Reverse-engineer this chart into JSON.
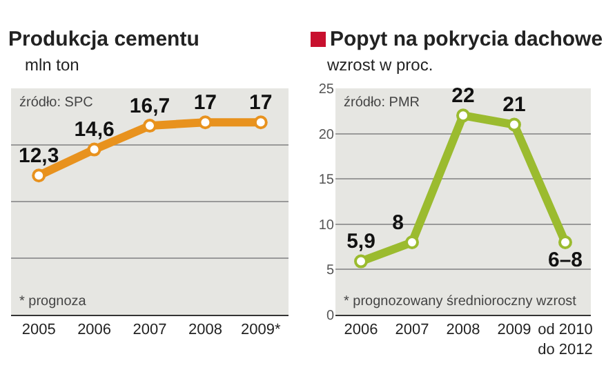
{
  "chart_data": [
    {
      "type": "line",
      "title": "Produkcja cementu",
      "subtitle": "mln ton",
      "categories": [
        "2005",
        "2006",
        "2007",
        "2008",
        "2009*"
      ],
      "series": [
        {
          "color": "#e8921e",
          "values": [
            12.3,
            14.6,
            16.7,
            17,
            17
          ],
          "value_labels": [
            "12,3",
            "14,6",
            "16,7",
            "17",
            "17"
          ]
        }
      ],
      "ylim": [
        0,
        20
      ],
      "yticks": [
        {
          "value": 0,
          "label": null
        },
        {
          "value": 5,
          "label": null
        },
        {
          "value": 10,
          "label": null
        },
        {
          "value": 15,
          "label": null
        },
        {
          "value": 20,
          "label": null
        }
      ],
      "tick_labels": "x",
      "grid": "y",
      "marker": "circle",
      "annotations": [
        "źródło: SPC",
        "* prognoza"
      ]
    },
    {
      "type": "line",
      "title": "Popyt na pokrycia dachowe",
      "subtitle": "wzrost  w proc.",
      "categories": [
        "2006",
        "2007",
        "2008",
        "2009",
        "od 2010 do 2012"
      ],
      "series": [
        {
          "color": "#9bbb2f",
          "values": [
            5.9,
            8,
            22,
            21,
            8
          ],
          "value_labels": [
            "5,9",
            "8",
            "22",
            "21",
            "6–8"
          ]
        }
      ],
      "ylim": [
        0,
        25
      ],
      "yticks": [
        0,
        5,
        10,
        15,
        20,
        25
      ],
      "grid": "y",
      "marker": "circle",
      "annotations": [
        "źródło: PMR",
        "* prognozowany średnioroczny wzrost"
      ]
    }
  ]
}
